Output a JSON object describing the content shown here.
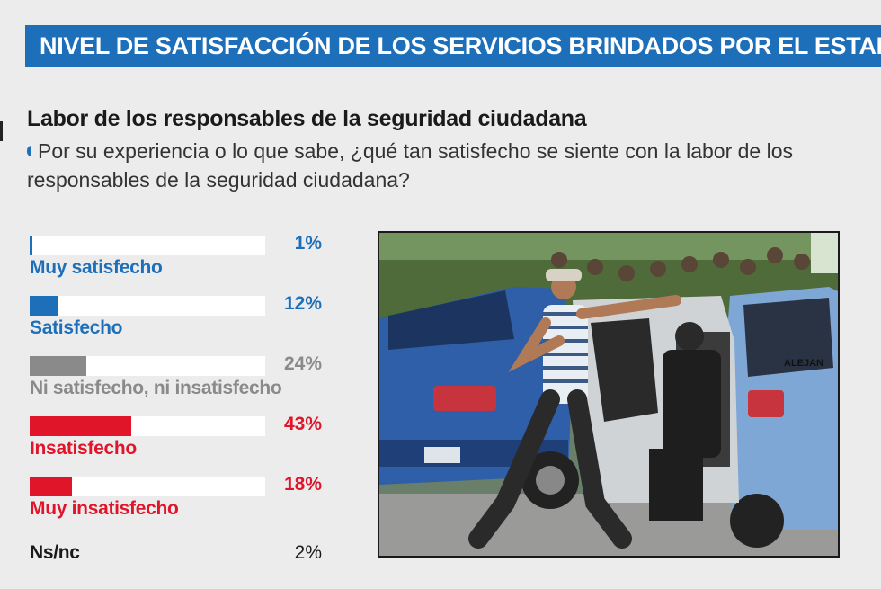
{
  "banner": {
    "title": "NIVEL DE SATISFACCIÓN DE LOS SERVICIOS BRINDADOS POR EL ESTADO"
  },
  "section": {
    "title": "Labor de los responsables de la seguridad ciudadana",
    "question": "Por su experiencia o lo que sabe, ¿qué tan satisfecho se siente con la labor de los responsables de la seguridad ciudadana?"
  },
  "chart_data": {
    "type": "bar",
    "title": "Labor de los responsables de la seguridad ciudadana",
    "categories": [
      "Muy satisfecho",
      "Satisfecho",
      "Ni satisfecho, ni insatisfecho",
      "Insatisfecho",
      "Muy insatisfecho",
      "Ns/nc"
    ],
    "values": [
      1,
      12,
      24,
      43,
      18,
      2
    ],
    "labels": [
      "1%",
      "12%",
      "24%",
      "43%",
      "18%",
      "2%"
    ],
    "colors": [
      "#1e6fba",
      "#1e6fba",
      "#8a8a8a",
      "#e0152a",
      "#e0152a",
      "#1a1a1a"
    ],
    "has_bar": [
      true,
      true,
      true,
      true,
      true,
      false
    ],
    "xlim": [
      0,
      100
    ],
    "unit": "%"
  },
  "photo": {
    "plate_text": "ALEJAN",
    "colors": {
      "car_blue": "#2f5fa8",
      "car_light": "#7ea7d6",
      "foliage": "#4f6b3a",
      "road": "#9a9a98"
    }
  }
}
